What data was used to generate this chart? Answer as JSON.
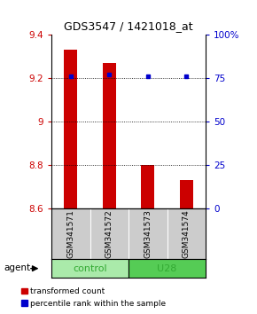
{
  "title": "GDS3547 / 1421018_at",
  "samples": [
    "GSM341571",
    "GSM341572",
    "GSM341573",
    "GSM341574"
  ],
  "groups": [
    "control",
    "control",
    "U28",
    "U28"
  ],
  "red_values": [
    9.33,
    9.27,
    8.8,
    8.73
  ],
  "blue_values": [
    76,
    77,
    76,
    76
  ],
  "ylim_left": [
    8.6,
    9.4
  ],
  "ylim_right": [
    0,
    100
  ],
  "yticks_left": [
    8.6,
    8.8,
    9.0,
    9.2,
    9.4
  ],
  "yticks_right": [
    0,
    25,
    50,
    75,
    100
  ],
  "ytick_labels_right": [
    "0",
    "25",
    "50",
    "75",
    "100%"
  ],
  "bar_bottom": 8.6,
  "red_color": "#cc0000",
  "blue_color": "#0000cc",
  "control_color": "#aaeaaa",
  "u28_color": "#55cc55",
  "group_label_color": "#33aa33",
  "legend_red": "transformed count",
  "legend_blue": "percentile rank within the sample",
  "agent_label": "agent",
  "bar_width": 0.35,
  "plot_bg": "#ffffff",
  "left_tick_color": "#cc0000",
  "right_tick_color": "#0000cc",
  "sample_bg": "#cccccc"
}
